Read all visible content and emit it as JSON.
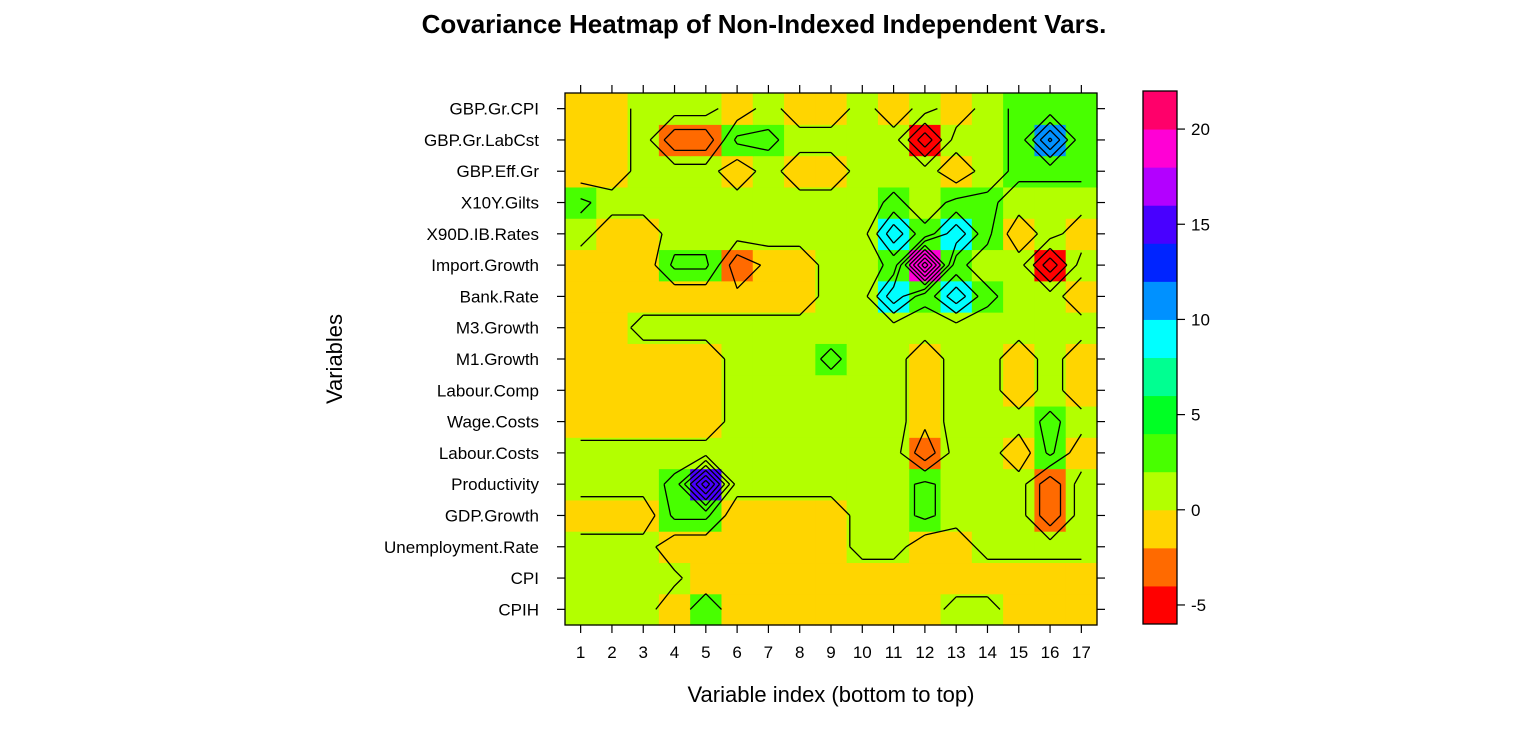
{
  "chart_data": {
    "type": "heatmap",
    "title": "Covariance Heatmap of Non-Indexed Independent Vars.",
    "xlabel": "Variable index (bottom to top)",
    "ylabel": "Variables",
    "x_ticks": [
      "1",
      "2",
      "3",
      "4",
      "5",
      "6",
      "7",
      "8",
      "9",
      "10",
      "11",
      "12",
      "13",
      "14",
      "15",
      "16",
      "17"
    ],
    "rows": [
      "CPIH",
      "CPI",
      "Unemployment.Rate",
      "GDP.Growth",
      "Productivity",
      "Labour.Costs",
      "Wage.Costs",
      "Labour.Comp",
      "M1.Growth",
      "M3.Growth",
      "Bank.Rate",
      "Import.Growth",
      "X90D.IB.Rates",
      "X10Y.Gilts",
      "GBP.Eff.Gr",
      "GBP.Gr.LabCst",
      "GBP.Gr.CPI"
    ],
    "values": [
      [
        1.5,
        1.5,
        1.5,
        -1,
        2,
        -1,
        -1,
        -1,
        -1,
        -1,
        -1,
        -1,
        1.5,
        1.5,
        -1,
        -1,
        -1
      ],
      [
        1.5,
        1.5,
        1.5,
        1,
        -1,
        -1,
        -1,
        -1,
        -1,
        -1,
        -1,
        -1,
        -1,
        -1,
        -1,
        -1,
        -1
      ],
      [
        1.5,
        1.5,
        1.5,
        -1,
        -1,
        -1,
        -1,
        -1,
        -1,
        1.5,
        1.5,
        -1,
        -1,
        1.5,
        1.5,
        1.5,
        1.5
      ],
      [
        -1,
        -1,
        -1,
        3,
        3,
        -1,
        -1,
        -1,
        -1,
        1.5,
        1.5,
        3,
        1.5,
        1.5,
        1.5,
        -3,
        1.5
      ],
      [
        1.5,
        1.5,
        1.5,
        3,
        14,
        1.5,
        1.5,
        1.5,
        1.5,
        1.5,
        1.5,
        3,
        1.5,
        1.5,
        1.5,
        -3,
        1.5
      ],
      [
        1.5,
        1.5,
        1.5,
        1.5,
        1.5,
        1.5,
        1.5,
        1.5,
        1.5,
        1.5,
        1.5,
        -3,
        1.5,
        1.5,
        -1,
        3,
        -1
      ],
      [
        -1,
        -1,
        -1,
        -1,
        -1,
        1.5,
        1.5,
        1.5,
        1.5,
        1.5,
        1.5,
        -1,
        1.5,
        1.5,
        1.5,
        3,
        1.5
      ],
      [
        -1,
        -1,
        -1,
        -1,
        -1,
        1.5,
        1.5,
        1.5,
        1.5,
        1.5,
        1.5,
        -1,
        1.5,
        1.5,
        -1,
        1.5,
        -1
      ],
      [
        -1,
        -1,
        -1,
        -1,
        -1,
        1.5,
        1.5,
        1.5,
        3,
        1.5,
        1.5,
        -1,
        1.5,
        1.5,
        -1,
        1.5,
        -1
      ],
      [
        -1,
        -1,
        1.5,
        1.5,
        1.5,
        1.5,
        1.5,
        1.5,
        1.5,
        1.5,
        1.5,
        1.5,
        1.5,
        1.5,
        1.5,
        1.5,
        1.5
      ],
      [
        -1,
        -1,
        -1,
        -1,
        -1,
        -1,
        -1,
        -1,
        1.5,
        1.5,
        8,
        3,
        8,
        3,
        1.5,
        1.5,
        -1
      ],
      [
        -1,
        -1,
        -1,
        3,
        3,
        -3,
        -1,
        -1,
        1.5,
        1.5,
        3,
        18,
        3,
        1.5,
        1.5,
        -5,
        1.5
      ],
      [
        1.5,
        -1,
        -1,
        1.5,
        1.5,
        1.5,
        1.5,
        1.5,
        1.5,
        1.5,
        8,
        3,
        8,
        3,
        -1,
        1.5,
        -1
      ],
      [
        3,
        1.5,
        1.5,
        1.5,
        1.5,
        1.5,
        1.5,
        1.5,
        1.5,
        1.5,
        3,
        1.5,
        3,
        3,
        1.5,
        1.5,
        1.5
      ],
      [
        -1,
        -1,
        1.5,
        1.5,
        1.5,
        -1,
        1.5,
        -1,
        -1,
        1.5,
        1.5,
        1.5,
        -1,
        1.5,
        3,
        3,
        3
      ],
      [
        -1,
        -1,
        1.5,
        -3,
        -3,
        3,
        3,
        1.5,
        1.5,
        1.5,
        1.5,
        -5,
        1.5,
        1.5,
        3,
        11,
        3
      ],
      [
        -1,
        -1,
        1.5,
        1.5,
        1.5,
        -1,
        1.5,
        -1,
        -1,
        1.5,
        -1,
        1.5,
        -1,
        1.5,
        3,
        3,
        3
      ]
    ],
    "colorbar": {
      "breaks": [
        -6,
        -4,
        -2,
        0,
        2,
        4,
        6,
        8,
        10,
        12,
        14,
        16,
        18,
        20,
        22
      ],
      "colors": [
        "#FF0000",
        "#FF6A00",
        "#FFD500",
        "#B3FF00",
        "#48FF00",
        "#00FF24",
        "#00FF91",
        "#00FFFF",
        "#0091FF",
        "#0024FF",
        "#4800FF",
        "#B300FF",
        "#FF00D5",
        "#FF006A"
      ],
      "ticks": [
        "-5",
        "0",
        "5",
        "10",
        "15",
        "20"
      ],
      "range": [
        -6,
        22
      ]
    },
    "contour": {
      "color": "#000000"
    },
    "grid": false,
    "legend": "right colorbar"
  }
}
